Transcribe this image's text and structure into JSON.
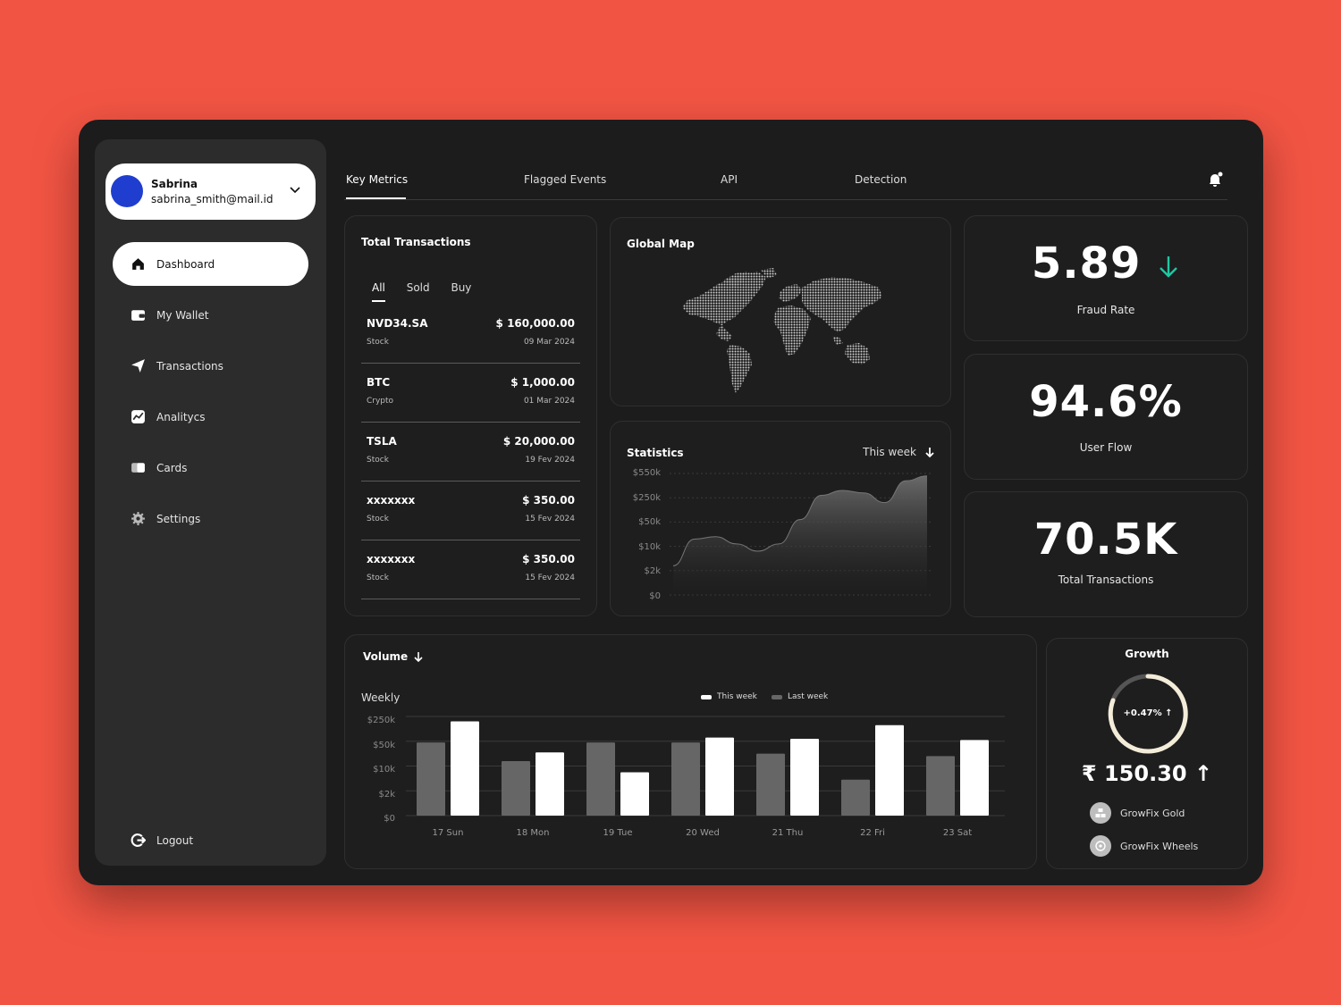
{
  "profile": {
    "name": "Sabrina",
    "email": "sabrina_smith@mail.id"
  },
  "nav": {
    "items": [
      {
        "label": "Dashboard",
        "icon": "home-icon"
      },
      {
        "label": "My Wallet",
        "icon": "wallet-icon"
      },
      {
        "label": "Transactions",
        "icon": "send-icon"
      },
      {
        "label": "Analitycs",
        "icon": "analytics-icon"
      },
      {
        "label": "Cards",
        "icon": "cards-icon"
      },
      {
        "label": "Settings",
        "icon": "gear-icon"
      }
    ],
    "logout": "Logout"
  },
  "tabs": [
    "Key Metrics",
    "Flagged Events",
    "API",
    "Detection"
  ],
  "transactions": {
    "title": "Total Transactions",
    "filters": [
      "All",
      "Sold",
      "Buy"
    ],
    "rows": [
      {
        "symbol": "NVD34.SA",
        "type": "Stock",
        "amount": "$ 160,000.00",
        "date": "09 Mar 2024"
      },
      {
        "symbol": "BTC",
        "type": "Crypto",
        "amount": "$ 1,000.00",
        "date": "01 Mar 2024"
      },
      {
        "symbol": "TSLA",
        "type": "Stock",
        "amount": "$ 20,000.00",
        "date": "19 Fev 2024"
      },
      {
        "symbol": "xxxxxxx",
        "type": "Stock",
        "amount": "$ 350.00",
        "date": "15 Fev 2024"
      },
      {
        "symbol": "xxxxxxx",
        "type": "Stock",
        "amount": "$ 350.00",
        "date": "15 Fev 2024"
      }
    ]
  },
  "global_map": {
    "title": "Global Map"
  },
  "metrics": {
    "fraud": {
      "value": "5.89",
      "label": "Fraud Rate",
      "trend_color": "#1FC7A3"
    },
    "user_flow": {
      "value": "94.6%",
      "label": "User Flow"
    },
    "total": {
      "value": "70.5K",
      "label": "Total Transactions"
    }
  },
  "statistics": {
    "title": "Statistics",
    "period": "This week",
    "axis": [
      "$550k",
      "$250k",
      "$50k",
      "$10k",
      "$2k",
      "$0"
    ]
  },
  "volume": {
    "title": "Volume",
    "subtitle": "Weekly",
    "legend": [
      "This week",
      "Last week"
    ],
    "axis": [
      "$250k",
      "$50k",
      "$10k",
      "$2k",
      "$0"
    ]
  },
  "growth": {
    "title": "Growth",
    "percent": "+0.47%",
    "price": "₹ 150.30",
    "items": [
      "GrowFix Gold",
      "GrowFix Wheels"
    ]
  },
  "chart_data": [
    {
      "type": "area",
      "title": "Statistics",
      "ylabels": [
        "$550k",
        "$250k",
        "$50k",
        "$10k",
        "$2k",
        "$0"
      ],
      "x": [
        0,
        1,
        2,
        3,
        4,
        5,
        6,
        7,
        8,
        9,
        10,
        11,
        12
      ],
      "values": [
        1.2,
        2.3,
        2.4,
        2.1,
        1.8,
        2.1,
        3.1,
        4.1,
        4.3,
        4.2,
        3.8,
        4.7,
        4.9
      ]
    },
    {
      "type": "bar",
      "title": "Volume",
      "categories": [
        "17 Sun",
        "18 Mon",
        "19 Tue",
        "20 Wed",
        "21 Thu",
        "22 Fri",
        "23 Sat"
      ],
      "ylabels": [
        "$250k",
        "$50k",
        "$10k",
        "$2k",
        "$0"
      ],
      "series": [
        {
          "name": "Last week",
          "values": [
            2.95,
            2.2,
            2.95,
            2.95,
            2.5,
            1.45,
            2.4
          ]
        },
        {
          "name": "This week",
          "values": [
            3.8,
            2.55,
            1.75,
            3.15,
            3.1,
            3.65,
            3.05
          ]
        }
      ],
      "colors": {
        "This week": "#FFFFFF",
        "Last week": "#666666"
      }
    }
  ]
}
